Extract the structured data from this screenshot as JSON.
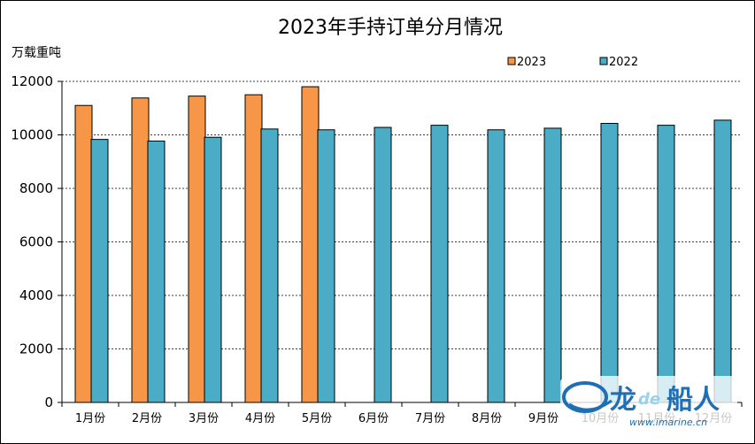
{
  "chart_data": {
    "type": "bar",
    "title": "2023年手持订单分月情况",
    "ylabel": "万载重吨",
    "xlabel": "",
    "categories": [
      "1月份",
      "2月份",
      "3月份",
      "4月份",
      "5月份",
      "6月份",
      "7月份",
      "8月份",
      "9月份",
      "10月份",
      "11月份",
      "12月份"
    ],
    "series": [
      {
        "name": "2023",
        "color": "#F79646",
        "values": [
          11100,
          11380,
          11450,
          11500,
          11800,
          null,
          null,
          null,
          null,
          null,
          null,
          null
        ]
      },
      {
        "name": "2022",
        "color": "#4BACC6",
        "values": [
          9830,
          9770,
          9910,
          10220,
          10190,
          10280,
          10360,
          10190,
          10250,
          10430,
          10360,
          10550
        ]
      }
    ],
    "ylim": [
      0,
      12000
    ],
    "yticks": [
      0,
      2000,
      4000,
      6000,
      8000,
      10000,
      12000
    ],
    "grid": true,
    "grid_style": "dashed",
    "legend": "top-right"
  },
  "watermark": {
    "brand_a": "龙",
    "brand_b": "de",
    "brand_c": "船人",
    "url": "www.imarine.cn"
  }
}
